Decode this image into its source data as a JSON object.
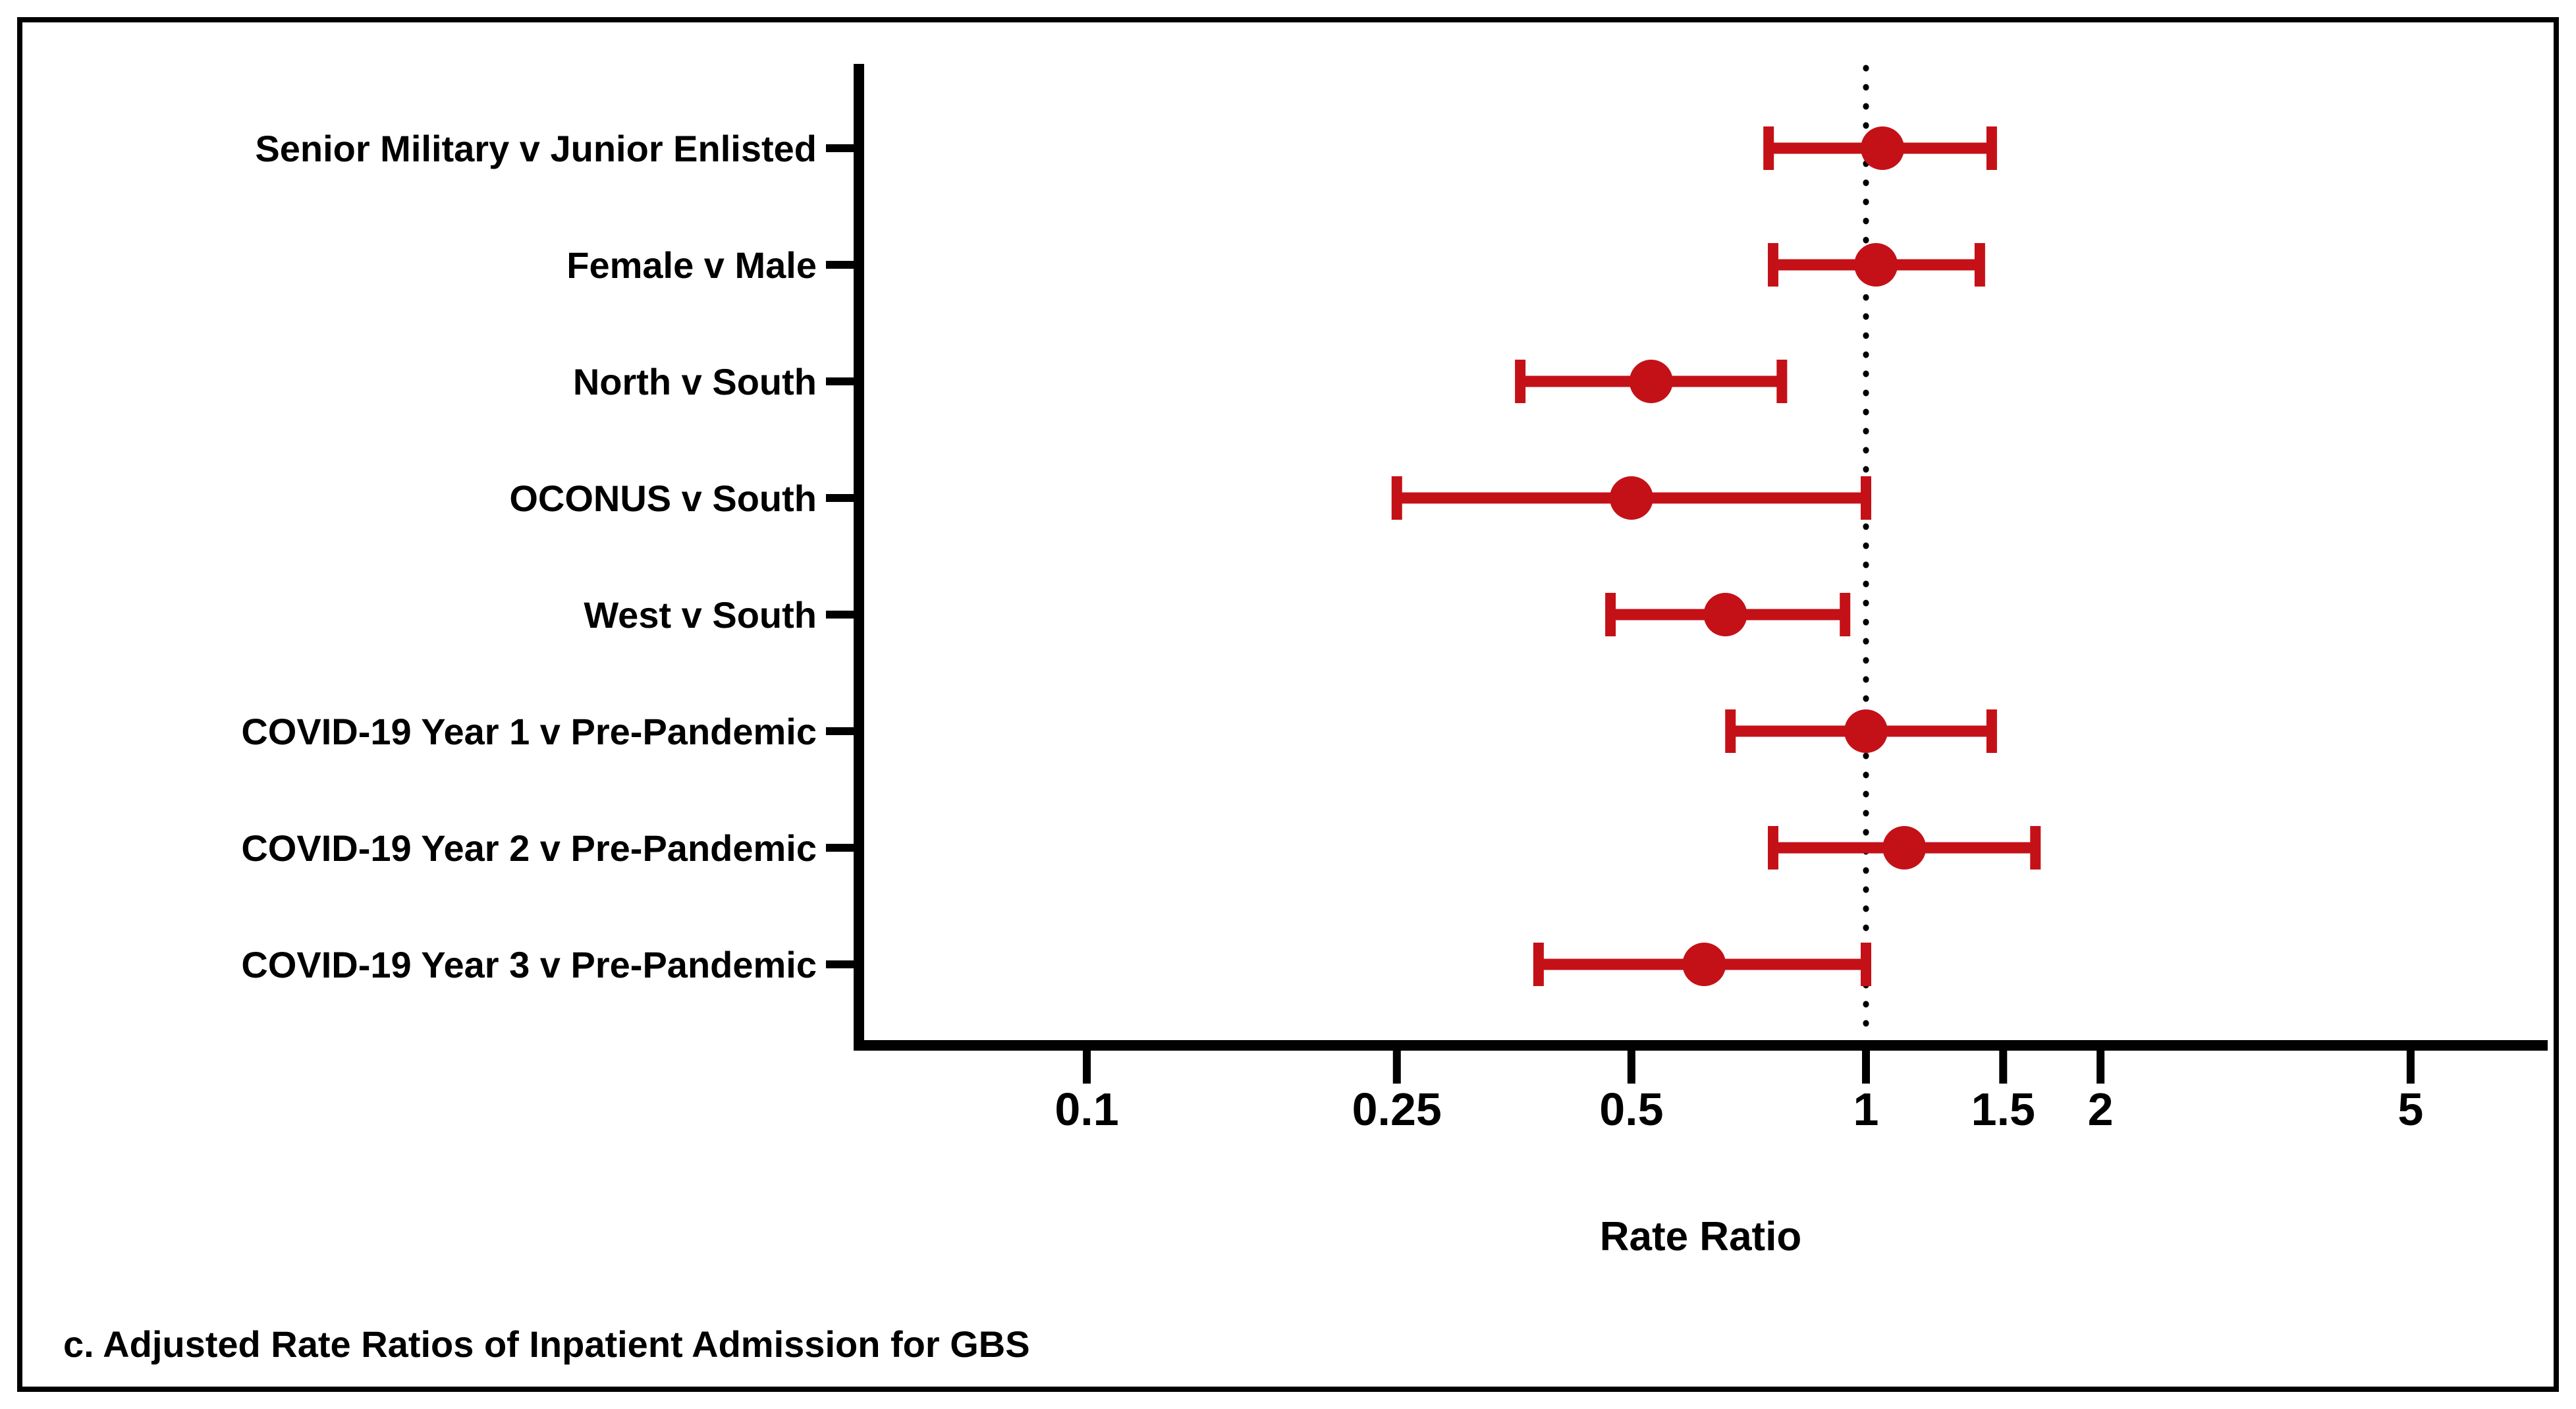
{
  "figure": {
    "caption": "c. Adjusted Rate Ratios of Inpatient Admission for GBS",
    "background_color": "#FFFFFF",
    "border_color": "#000000"
  },
  "chart_data": {
    "type": "scatter",
    "subtype": "forest-plot",
    "title": "",
    "xlabel": "Rate Ratio",
    "ylabel": "",
    "x_scale": "log",
    "x_tick_values": [
      0.1,
      0.25,
      0.5,
      1,
      1.5,
      2,
      5
    ],
    "x_tick_labels": [
      "0.1",
      "0.25",
      "0.5",
      "1",
      "1.5",
      "2",
      "5"
    ],
    "xlim": [
      0.05,
      7.4
    ],
    "grid": "off",
    "legend": "none",
    "reference_line_x": 1,
    "reference_line_style": "dotted",
    "marker_shape": "circle",
    "marker_color": "#C41117",
    "axis_color": "#000000",
    "categories": [
      "Senior Military v Junior Enlisted",
      "Female v Male",
      "North v South",
      "OCONUS v South",
      "West v South",
      "COVID-19 Year 1 v Pre-Pandemic",
      "COVID-19 Year 2 v Pre-Pandemic",
      "COVID-19 Year 3 v Pre-Pandemic"
    ],
    "series": [
      {
        "name": "Rate Ratio",
        "values": [
          1.05,
          1.03,
          0.53,
          0.5,
          0.66,
          1.0,
          1.12,
          0.62
        ],
        "ci_low": [
          0.75,
          0.76,
          0.36,
          0.25,
          0.47,
          0.67,
          0.76,
          0.38
        ],
        "ci_high": [
          1.45,
          1.4,
          0.78,
          1.0,
          0.94,
          1.45,
          1.65,
          1.0
        ]
      }
    ]
  }
}
